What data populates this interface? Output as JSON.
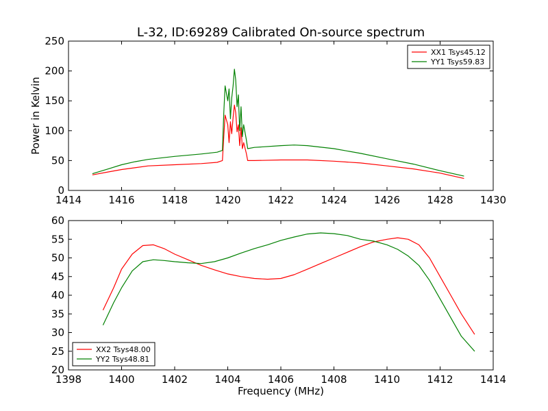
{
  "chart_data": [
    {
      "type": "line",
      "title": "L-32, ID:69289 Calibrated On-source spectrum",
      "xlabel": "",
      "ylabel": "Power in Kelvin",
      "xlim": [
        1414,
        1430
      ],
      "ylim": [
        0,
        250
      ],
      "xticks": [
        "1414",
        "1416",
        "1418",
        "1420",
        "1422",
        "1424",
        "1426",
        "1428",
        "1430"
      ],
      "yticks": [
        "0",
        "50",
        "100",
        "150",
        "200",
        "250"
      ],
      "legend_position": "top-right",
      "series": [
        {
          "name": "XX1 Tsys45.12",
          "color": "#ff0000",
          "x": [
            1414.9,
            1415.5,
            1416.0,
            1416.5,
            1417.0,
            1418.0,
            1419.0,
            1419.6,
            1419.8,
            1419.85,
            1419.9,
            1420.0,
            1420.05,
            1420.1,
            1420.15,
            1420.2,
            1420.25,
            1420.3,
            1420.35,
            1420.4,
            1420.45,
            1420.5,
            1420.55,
            1420.6,
            1420.7,
            1420.75,
            1421.0,
            1422.0,
            1423.0,
            1424.0,
            1425.0,
            1426.0,
            1427.0,
            1428.0,
            1428.9
          ],
          "y": [
            26,
            31,
            35,
            38,
            41,
            43,
            45,
            47,
            50,
            90,
            126,
            110,
            80,
            115,
            95,
            122,
            143,
            130,
            98,
            110,
            75,
            105,
            70,
            80,
            62,
            50,
            50,
            51,
            51,
            49,
            46,
            41,
            36,
            29,
            20
          ]
        },
        {
          "name": "YY1 Tsys59.83",
          "color": "#008000",
          "x": [
            1414.9,
            1415.5,
            1416.0,
            1416.5,
            1417.0,
            1418.0,
            1419.0,
            1419.6,
            1419.8,
            1419.85,
            1419.9,
            1420.0,
            1420.05,
            1420.1,
            1420.15,
            1420.2,
            1420.25,
            1420.3,
            1420.35,
            1420.4,
            1420.45,
            1420.5,
            1420.55,
            1420.6,
            1420.7,
            1420.75,
            1421.0,
            1422.0,
            1422.5,
            1423.0,
            1424.0,
            1425.0,
            1426.0,
            1427.0,
            1428.0,
            1428.9
          ],
          "y": [
            28,
            36,
            43,
            48,
            52,
            57,
            61,
            64,
            67,
            130,
            175,
            150,
            170,
            120,
            155,
            175,
            203,
            185,
            140,
            160,
            100,
            140,
            90,
            110,
            85,
            70,
            72,
            75,
            76,
            75,
            70,
            62,
            53,
            44,
            33,
            24
          ]
        }
      ]
    },
    {
      "type": "line",
      "title": "",
      "xlabel": "Frequency (MHz)",
      "ylabel": "",
      "xlim": [
        1398,
        1414
      ],
      "ylim": [
        20,
        60
      ],
      "xticks": [
        "1398",
        "1400",
        "1402",
        "1404",
        "1406",
        "1408",
        "1410",
        "1412",
        "1414"
      ],
      "yticks": [
        "20",
        "25",
        "30",
        "35",
        "40",
        "45",
        "50",
        "55",
        "60"
      ],
      "legend_position": "bottom-left",
      "series": [
        {
          "name": "XX2 Tsys48.00",
          "color": "#ff0000",
          "x": [
            1399.3,
            1399.7,
            1400.0,
            1400.4,
            1400.8,
            1401.2,
            1401.6,
            1402.0,
            1402.5,
            1403.0,
            1403.5,
            1404.0,
            1404.5,
            1405.0,
            1405.5,
            1406.0,
            1406.5,
            1407.0,
            1407.5,
            1408.0,
            1408.5,
            1409.0,
            1409.5,
            1410.0,
            1410.4,
            1410.8,
            1411.2,
            1411.6,
            1412.0,
            1412.4,
            1412.8,
            1413.3
          ],
          "y": [
            36,
            42,
            47,
            51,
            53.3,
            53.5,
            52.5,
            51,
            49.5,
            48,
            46.8,
            45.7,
            45,
            44.5,
            44.3,
            44.5,
            45.5,
            47,
            48.5,
            50,
            51.5,
            53,
            54.3,
            55,
            55.4,
            55,
            53.5,
            50,
            45,
            40,
            35,
            29.5
          ]
        },
        {
          "name": "YY2 Tsys48.81",
          "color": "#008000",
          "x": [
            1399.3,
            1399.7,
            1400.0,
            1400.4,
            1400.8,
            1401.2,
            1401.6,
            1402.0,
            1402.5,
            1403.0,
            1403.5,
            1404.0,
            1404.5,
            1405.0,
            1405.5,
            1406.0,
            1406.5,
            1407.0,
            1407.5,
            1408.0,
            1408.5,
            1409.0,
            1409.5,
            1410.0,
            1410.4,
            1410.8,
            1411.2,
            1411.6,
            1412.0,
            1412.4,
            1412.8,
            1413.3
          ],
          "y": [
            32,
            38,
            42,
            46.5,
            49,
            49.5,
            49.3,
            49,
            48.7,
            48.5,
            49,
            50,
            51.3,
            52.5,
            53.5,
            54.7,
            55.6,
            56.4,
            56.7,
            56.5,
            56,
            55,
            54.5,
            53.5,
            52.3,
            50.5,
            48,
            44,
            39,
            34,
            29,
            25
          ]
        }
      ]
    }
  ]
}
